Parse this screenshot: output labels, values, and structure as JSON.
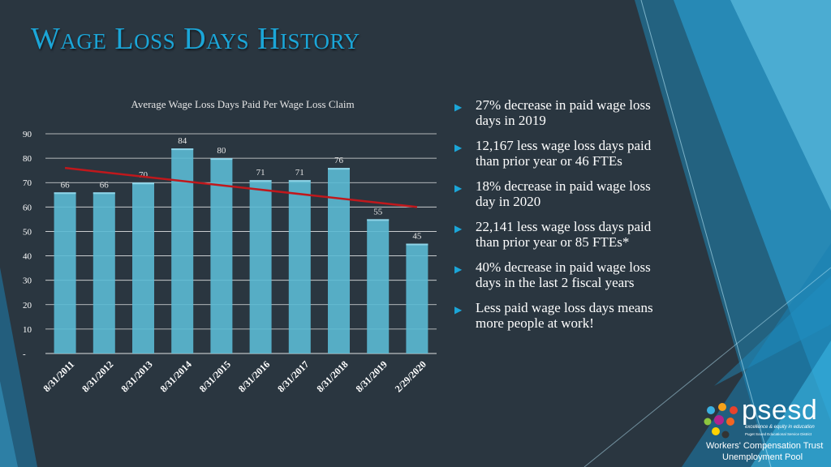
{
  "slide": {
    "title": "Wage Loss Days History",
    "colors": {
      "background": "#2a3640",
      "accent": "#1ba6d8",
      "bar": "#5bbad4",
      "trend": "#c0181c"
    }
  },
  "chart_data": {
    "type": "bar",
    "title": "Average Wage Loss Days Paid Per Wage Loss Claim",
    "categories": [
      "8/31/2011",
      "8/31/2012",
      "8/31/2013",
      "8/31/2014",
      "8/31/2015",
      "8/31/2016",
      "8/31/2017",
      "8/31/2018",
      "8/31/2019",
      "2/29/2020"
    ],
    "values": [
      66,
      66,
      70,
      84,
      80,
      71,
      71,
      76,
      55,
      45
    ],
    "data_labels": [
      "66",
      "66",
      "70",
      "84",
      "80",
      "71",
      "71",
      "76",
      "55",
      "45"
    ],
    "y_ticks": [
      "-",
      "10",
      "20",
      "30",
      "40",
      "50",
      "60",
      "70",
      "80",
      "90"
    ],
    "ylim": [
      0,
      90
    ],
    "grid": true,
    "legend": "none",
    "trendline": {
      "type": "linear",
      "start": 76,
      "end": 60
    }
  },
  "bullets": [
    {
      "text": "27% decrease in paid wage loss days in 2019"
    },
    {
      "text": "12,167 less wage loss days paid than prior year or 46 FTEs"
    },
    {
      "text": "18% decrease in paid wage loss day in 2020"
    },
    {
      "text": "22,141 less wage loss days paid than prior year or 85 FTEs*"
    },
    {
      "text": "40% decrease in paid wage loss days in the last 2 fiscal years"
    },
    {
      "text": "Less paid wage loss days means more people at work!"
    }
  ],
  "logo": {
    "name": "psesd",
    "tagline": "excellence & equity in education",
    "subtitle": "Puget Sound Educational Service District",
    "org_line1": "Workers' Compensation Trust",
    "org_line2": "Unemployment Pool",
    "dot_colors": [
      "#3bb0e0",
      "#f5a21b",
      "#e8422c",
      "#8cc63f",
      "#b1238f",
      "#f26522",
      "#ffd200",
      "#333333"
    ]
  }
}
